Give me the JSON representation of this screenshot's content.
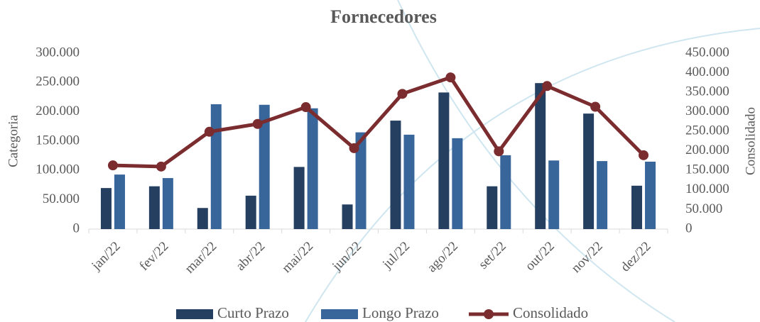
{
  "chart_data": {
    "type": "bar_line",
    "title": "Fornecedores",
    "ylabel": "Categoria",
    "y2label": "Consolidado",
    "categories": [
      "jan/22",
      "fev/22",
      "mar/22",
      "abr/22",
      "mai/22",
      "jun/22",
      "jul/22",
      "ago/22",
      "set/22",
      "out/22",
      "nov/22",
      "dez/22"
    ],
    "series": [
      {
        "name": "Curto Prazo",
        "color": "#243f60",
        "type": "bar",
        "values": [
          70000,
          73000,
          36000,
          57000,
          106000,
          42000,
          185000,
          233000,
          73000,
          249000,
          197000,
          74000
        ]
      },
      {
        "name": "Longo Prazo",
        "color": "#38659a",
        "type": "bar",
        "values": [
          93000,
          87000,
          213000,
          212000,
          206000,
          165000,
          161000,
          155000,
          126000,
          117000,
          116000,
          115000
        ]
      },
      {
        "name": "Consolidado",
        "color": "#7b2c2f",
        "type": "line",
        "axis": "y2",
        "values": [
          163000,
          160000,
          249000,
          269000,
          312000,
          207000,
          346000,
          388000,
          199000,
          366000,
          313000,
          189000
        ]
      }
    ],
    "ylim": [
      0,
      300000
    ],
    "yticks": [
      0,
      {
        "value": 50000,
        "label": "50.000"
      },
      {
        "value": 100000,
        "label": "100.000"
      },
      {
        "value": 150000,
        "label": "150.000"
      },
      {
        "value": 200000,
        "label": "200.000"
      },
      {
        "value": 250000,
        "label": "250.000"
      },
      {
        "value": 300000,
        "label": "300.000"
      }
    ],
    "y2lim": [
      0,
      450000
    ],
    "y2ticks": [
      0,
      {
        "value": 50000,
        "label": "50.000"
      },
      {
        "value": 100000,
        "label": "100.000"
      },
      {
        "value": 150000,
        "label": "150.000"
      },
      {
        "value": 200000,
        "label": "200.000"
      },
      {
        "value": 250000,
        "label": "250.000"
      },
      {
        "value": 300000,
        "label": "300.000"
      },
      {
        "value": 350000,
        "label": "350.000"
      },
      {
        "value": 400000,
        "label": "400.000"
      },
      {
        "value": 450000,
        "label": "450.000"
      }
    ],
    "legend": "bottom"
  }
}
